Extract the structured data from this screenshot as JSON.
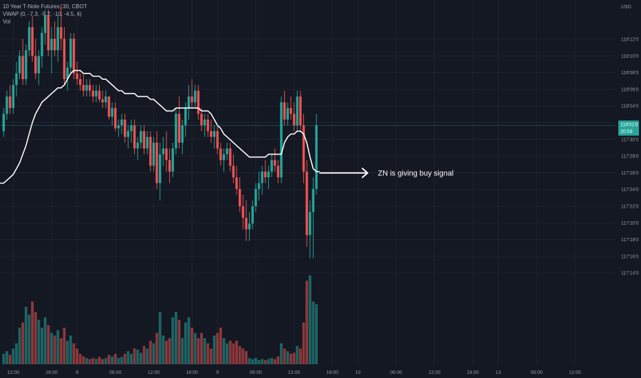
{
  "legend": {
    "symbol": "10 Year T-Note Futures, 30, CBOT",
    "indicator": "VWAP (0, -7.3, -5.2, -10, -4.5, 4)",
    "volume": "Vol"
  },
  "colors": {
    "up": "#26a69a",
    "down": "#ef5350",
    "vwap": "#ffffff",
    "background": "#141823",
    "grid": "#1f2330",
    "badge": "#26a69a"
  },
  "chart_data": {
    "type": "candlestick",
    "currency_label": "USD",
    "y_ticks": [
      "118'12'0",
      "118'10'0",
      "118'08'0",
      "118'06'0",
      "118'04'0",
      "118'02'0",
      "117'30'0",
      "117'28'0",
      "117'26'0",
      "117'24'0",
      "117'22'0",
      "117'20'0",
      "117'18'0",
      "117'16'0",
      "117'14'0"
    ],
    "last_price": "118'01'0",
    "countdown": "20:59",
    "x_ticks": [
      {
        "label": "12:00",
        "bar": 3
      },
      {
        "label": "18:00",
        "bar": 15
      },
      {
        "label": "8",
        "bar": 23
      },
      {
        "label": "06:00",
        "bar": 35
      },
      {
        "label": "12:00",
        "bar": 47
      },
      {
        "label": "18:00",
        "bar": 59
      },
      {
        "label": "9",
        "bar": 67
      },
      {
        "label": "06:00",
        "bar": 79
      },
      {
        "label": "12:00",
        "bar": 91
      },
      {
        "label": "18:00",
        "bar": 103
      },
      {
        "label": "10",
        "bar": 111
      },
      {
        "label": "06:00",
        "bar": 123
      },
      {
        "label": "12:00",
        "bar": 135
      },
      {
        "label": "18:00",
        "bar": 147
      },
      {
        "label": "13",
        "bar": 155
      },
      {
        "label": "06:00",
        "bar": 167
      },
      {
        "label": "12:00",
        "bar": 179
      }
    ],
    "annotation": "ZN is giving buy signal",
    "candles": [
      {
        "o": 117.94,
        "h": 118.02,
        "l": 117.92,
        "c": 118.0,
        "v": 20
      },
      {
        "o": 118.0,
        "h": 118.08,
        "l": 117.98,
        "c": 118.06,
        "v": 25
      },
      {
        "o": 118.06,
        "h": 118.1,
        "l": 118.0,
        "c": 118.02,
        "v": 18
      },
      {
        "o": 118.02,
        "h": 118.12,
        "l": 118.0,
        "c": 118.1,
        "v": 30
      },
      {
        "o": 118.1,
        "h": 118.18,
        "l": 118.06,
        "c": 118.14,
        "v": 40
      },
      {
        "o": 118.14,
        "h": 118.22,
        "l": 118.12,
        "c": 118.2,
        "v": 70
      },
      {
        "o": 118.2,
        "h": 118.26,
        "l": 118.1,
        "c": 118.12,
        "v": 80
      },
      {
        "o": 118.12,
        "h": 118.24,
        "l": 118.1,
        "c": 118.22,
        "v": 110
      },
      {
        "o": 118.22,
        "h": 118.32,
        "l": 118.2,
        "c": 118.3,
        "v": 95
      },
      {
        "o": 118.3,
        "h": 118.34,
        "l": 118.18,
        "c": 118.2,
        "v": 120
      },
      {
        "o": 118.2,
        "h": 118.26,
        "l": 118.12,
        "c": 118.14,
        "v": 100
      },
      {
        "o": 118.14,
        "h": 118.22,
        "l": 118.1,
        "c": 118.2,
        "v": 85
      },
      {
        "o": 118.2,
        "h": 118.3,
        "l": 118.16,
        "c": 118.28,
        "v": 70
      },
      {
        "o": 118.28,
        "h": 118.36,
        "l": 118.24,
        "c": 118.34,
        "v": 90
      },
      {
        "o": 118.34,
        "h": 118.36,
        "l": 118.2,
        "c": 118.22,
        "v": 75
      },
      {
        "o": 118.22,
        "h": 118.3,
        "l": 118.14,
        "c": 118.26,
        "v": 60
      },
      {
        "o": 118.26,
        "h": 118.32,
        "l": 118.2,
        "c": 118.22,
        "v": 55
      },
      {
        "o": 118.22,
        "h": 118.34,
        "l": 118.18,
        "c": 118.3,
        "v": 65
      },
      {
        "o": 118.3,
        "h": 118.38,
        "l": 118.22,
        "c": 118.26,
        "v": 50
      },
      {
        "o": 118.26,
        "h": 118.3,
        "l": 118.1,
        "c": 118.12,
        "v": 70
      },
      {
        "o": 118.12,
        "h": 118.18,
        "l": 118.08,
        "c": 118.16,
        "v": 45
      },
      {
        "o": 118.16,
        "h": 118.28,
        "l": 118.14,
        "c": 118.26,
        "v": 55
      },
      {
        "o": 118.26,
        "h": 118.28,
        "l": 118.12,
        "c": 118.14,
        "v": 40
      },
      {
        "o": 118.14,
        "h": 118.18,
        "l": 118.1,
        "c": 118.12,
        "v": 30
      },
      {
        "o": 118.12,
        "h": 118.14,
        "l": 118.08,
        "c": 118.1,
        "v": 20
      },
      {
        "o": 118.1,
        "h": 118.14,
        "l": 118.06,
        "c": 118.08,
        "v": 15
      },
      {
        "o": 118.08,
        "h": 118.12,
        "l": 118.06,
        "c": 118.1,
        "v": 12
      },
      {
        "o": 118.1,
        "h": 118.12,
        "l": 118.06,
        "c": 118.08,
        "v": 10
      },
      {
        "o": 118.08,
        "h": 118.1,
        "l": 118.04,
        "c": 118.06,
        "v": 12
      },
      {
        "o": 118.06,
        "h": 118.1,
        "l": 118.04,
        "c": 118.08,
        "v": 10
      },
      {
        "o": 118.08,
        "h": 118.1,
        "l": 118.04,
        "c": 118.05,
        "v": 14
      },
      {
        "o": 118.05,
        "h": 118.08,
        "l": 118.02,
        "c": 118.04,
        "v": 10
      },
      {
        "o": 118.04,
        "h": 118.08,
        "l": 118.02,
        "c": 118.06,
        "v": 12
      },
      {
        "o": 118.06,
        "h": 118.06,
        "l": 117.98,
        "c": 117.99,
        "v": 18
      },
      {
        "o": 117.99,
        "h": 118.04,
        "l": 117.96,
        "c": 118.02,
        "v": 15
      },
      {
        "o": 118.02,
        "h": 118.04,
        "l": 117.94,
        "c": 117.95,
        "v": 20
      },
      {
        "o": 117.95,
        "h": 117.98,
        "l": 117.92,
        "c": 117.96,
        "v": 12
      },
      {
        "o": 117.96,
        "h": 118.0,
        "l": 117.93,
        "c": 117.98,
        "v": 14
      },
      {
        "o": 117.98,
        "h": 118.0,
        "l": 117.9,
        "c": 117.92,
        "v": 20
      },
      {
        "o": 117.92,
        "h": 117.96,
        "l": 117.88,
        "c": 117.94,
        "v": 25
      },
      {
        "o": 117.94,
        "h": 117.98,
        "l": 117.9,
        "c": 117.96,
        "v": 20
      },
      {
        "o": 117.96,
        "h": 117.98,
        "l": 117.86,
        "c": 117.88,
        "v": 30
      },
      {
        "o": 117.88,
        "h": 117.92,
        "l": 117.84,
        "c": 117.9,
        "v": 28
      },
      {
        "o": 117.9,
        "h": 117.96,
        "l": 117.88,
        "c": 117.94,
        "v": 22
      },
      {
        "o": 117.94,
        "h": 117.96,
        "l": 117.86,
        "c": 117.88,
        "v": 35
      },
      {
        "o": 117.88,
        "h": 117.94,
        "l": 117.86,
        "c": 117.92,
        "v": 30
      },
      {
        "o": 117.92,
        "h": 117.94,
        "l": 117.8,
        "c": 117.82,
        "v": 45
      },
      {
        "o": 117.82,
        "h": 117.92,
        "l": 117.8,
        "c": 117.9,
        "v": 40
      },
      {
        "o": 117.9,
        "h": 117.94,
        "l": 117.74,
        "c": 117.76,
        "v": 60
      },
      {
        "o": 117.76,
        "h": 117.9,
        "l": 117.7,
        "c": 117.86,
        "v": 100
      },
      {
        "o": 117.86,
        "h": 117.92,
        "l": 117.82,
        "c": 117.88,
        "v": 55
      },
      {
        "o": 117.88,
        "h": 117.94,
        "l": 117.8,
        "c": 117.84,
        "v": 45
      },
      {
        "o": 117.84,
        "h": 117.88,
        "l": 117.76,
        "c": 117.8,
        "v": 50
      },
      {
        "o": 117.8,
        "h": 117.9,
        "l": 117.78,
        "c": 117.88,
        "v": 90
      },
      {
        "o": 117.88,
        "h": 118.02,
        "l": 117.86,
        "c": 118.0,
        "v": 100
      },
      {
        "o": 118.0,
        "h": 118.06,
        "l": 117.88,
        "c": 117.9,
        "v": 85
      },
      {
        "o": 117.9,
        "h": 117.98,
        "l": 117.86,
        "c": 117.96,
        "v": 50
      },
      {
        "o": 117.96,
        "h": 118.04,
        "l": 117.92,
        "c": 118.02,
        "v": 80
      },
      {
        "o": 118.02,
        "h": 118.1,
        "l": 117.98,
        "c": 118.06,
        "v": 90
      },
      {
        "o": 118.06,
        "h": 118.12,
        "l": 118.02,
        "c": 118.04,
        "v": 70
      },
      {
        "o": 118.04,
        "h": 118.1,
        "l": 118.02,
        "c": 118.08,
        "v": 60
      },
      {
        "o": 118.08,
        "h": 118.1,
        "l": 117.98,
        "c": 118.0,
        "v": 50
      },
      {
        "o": 118.0,
        "h": 118.02,
        "l": 117.94,
        "c": 117.96,
        "v": 60
      },
      {
        "o": 117.96,
        "h": 118.0,
        "l": 117.92,
        "c": 117.98,
        "v": 50
      },
      {
        "o": 117.98,
        "h": 118.0,
        "l": 117.92,
        "c": 117.94,
        "v": 40
      },
      {
        "o": 117.94,
        "h": 117.98,
        "l": 117.9,
        "c": 117.92,
        "v": 30
      },
      {
        "o": 117.92,
        "h": 117.96,
        "l": 117.88,
        "c": 117.94,
        "v": 55
      },
      {
        "o": 117.94,
        "h": 117.96,
        "l": 117.86,
        "c": 117.88,
        "v": 60
      },
      {
        "o": 117.88,
        "h": 117.9,
        "l": 117.82,
        "c": 117.84,
        "v": 70
      },
      {
        "o": 117.84,
        "h": 117.88,
        "l": 117.8,
        "c": 117.86,
        "v": 50
      },
      {
        "o": 117.86,
        "h": 117.9,
        "l": 117.84,
        "c": 117.88,
        "v": 40
      },
      {
        "o": 117.88,
        "h": 117.9,
        "l": 117.8,
        "c": 117.82,
        "v": 45
      },
      {
        "o": 117.82,
        "h": 117.86,
        "l": 117.76,
        "c": 117.78,
        "v": 40
      },
      {
        "o": 117.78,
        "h": 117.82,
        "l": 117.72,
        "c": 117.74,
        "v": 45
      },
      {
        "o": 117.74,
        "h": 117.78,
        "l": 117.66,
        "c": 117.68,
        "v": 35
      },
      {
        "o": 117.68,
        "h": 117.72,
        "l": 117.6,
        "c": 117.64,
        "v": 30
      },
      {
        "o": 117.64,
        "h": 117.7,
        "l": 117.56,
        "c": 117.6,
        "v": 25
      },
      {
        "o": 117.6,
        "h": 117.66,
        "l": 117.56,
        "c": 117.62,
        "v": 12
      },
      {
        "o": 117.62,
        "h": 117.7,
        "l": 117.6,
        "c": 117.68,
        "v": 10
      },
      {
        "o": 117.68,
        "h": 117.76,
        "l": 117.66,
        "c": 117.74,
        "v": 12
      },
      {
        "o": 117.74,
        "h": 117.8,
        "l": 117.7,
        "c": 117.76,
        "v": 8
      },
      {
        "o": 117.76,
        "h": 117.82,
        "l": 117.72,
        "c": 117.8,
        "v": 10
      },
      {
        "o": 117.8,
        "h": 117.84,
        "l": 117.76,
        "c": 117.78,
        "v": 8
      },
      {
        "o": 117.78,
        "h": 117.82,
        "l": 117.74,
        "c": 117.8,
        "v": 10
      },
      {
        "o": 117.8,
        "h": 117.86,
        "l": 117.78,
        "c": 117.84,
        "v": 12
      },
      {
        "o": 117.84,
        "h": 117.88,
        "l": 117.8,
        "c": 117.82,
        "v": 10
      },
      {
        "o": 117.82,
        "h": 117.84,
        "l": 117.76,
        "c": 117.78,
        "v": 15
      },
      {
        "o": 117.78,
        "h": 118.06,
        "l": 117.76,
        "c": 118.04,
        "v": 40
      },
      {
        "o": 118.04,
        "h": 118.08,
        "l": 117.96,
        "c": 117.98,
        "v": 30
      },
      {
        "o": 117.98,
        "h": 118.04,
        "l": 117.96,
        "c": 118.02,
        "v": 25
      },
      {
        "o": 118.02,
        "h": 118.06,
        "l": 117.98,
        "c": 118.0,
        "v": 20
      },
      {
        "o": 118.0,
        "h": 118.04,
        "l": 117.94,
        "c": 117.96,
        "v": 22
      },
      {
        "o": 117.96,
        "h": 118.08,
        "l": 117.94,
        "c": 118.06,
        "v": 35
      },
      {
        "o": 118.06,
        "h": 118.08,
        "l": 117.94,
        "c": 117.96,
        "v": 30
      },
      {
        "o": 117.96,
        "h": 118.0,
        "l": 117.76,
        "c": 117.8,
        "v": 80
      },
      {
        "o": 117.8,
        "h": 117.84,
        "l": 117.54,
        "c": 117.58,
        "v": 160
      },
      {
        "o": 117.58,
        "h": 117.7,
        "l": 117.5,
        "c": 117.66,
        "v": 170
      },
      {
        "o": 117.66,
        "h": 117.78,
        "l": 117.5,
        "c": 117.74,
        "v": 120
      },
      {
        "o": 117.74,
        "h": 118.0,
        "l": 117.72,
        "c": 117.96,
        "v": 115
      }
    ],
    "vwap": [
      117.76,
      117.77,
      117.78,
      117.79,
      117.81,
      117.83,
      117.86,
      117.89,
      117.93,
      117.97,
      118.0,
      118.02,
      118.04,
      118.05,
      118.06,
      118.07,
      118.08,
      118.09,
      118.09,
      118.1,
      118.12,
      118.14,
      118.15,
      118.15,
      118.15,
      118.14,
      118.14,
      118.14,
      118.13,
      118.13,
      118.13,
      118.12,
      118.12,
      118.11,
      118.1,
      118.09,
      118.08,
      118.08,
      118.07,
      118.07,
      118.07,
      118.07,
      118.06,
      118.06,
      118.06,
      118.06,
      118.05,
      118.05,
      118.04,
      118.03,
      118.02,
      118.01,
      118.01,
      118.01,
      118.02,
      118.02,
      118.02,
      118.02,
      118.02,
      118.02,
      118.02,
      118.02,
      118.01,
      118.01,
      118.01,
      118.0,
      117.98,
      117.96,
      117.95,
      117.93,
      117.92,
      117.91,
      117.9,
      117.89,
      117.88,
      117.87,
      117.86,
      117.85,
      117.85,
      117.85,
      117.85,
      117.85,
      117.85,
      117.86,
      117.86,
      117.86,
      117.86,
      117.86,
      117.9,
      117.92,
      117.93,
      117.93,
      117.94,
      117.94,
      117.93,
      117.9,
      117.85,
      117.81,
      117.8,
      117.8
    ]
  }
}
